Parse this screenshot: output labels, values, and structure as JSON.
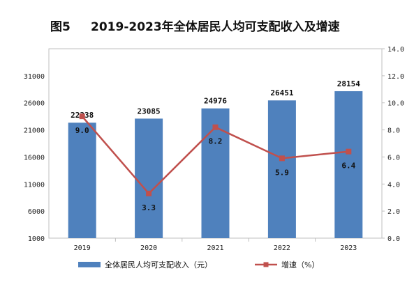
{
  "chart_data": {
    "type": "bar",
    "title_prefix": "图5",
    "title_main": "2019-2023年全体居民人均可支配收入及增速",
    "categories": [
      "2019",
      "2020",
      "2021",
      "2022",
      "2023"
    ],
    "series": [
      {
        "name": "全体居民人均可支配收入（元）",
        "type": "bar",
        "axis": "left",
        "values": [
          22338,
          23085,
          24976,
          26451,
          28154
        ],
        "value_labels": [
          "22338",
          "23085",
          "24976",
          "26451",
          "28154"
        ],
        "color": "#4F81BD"
      },
      {
        "name": "增速（%）",
        "type": "line",
        "axis": "right",
        "values": [
          9.0,
          3.3,
          8.2,
          5.9,
          6.4
        ],
        "value_labels": [
          "9.0",
          "3.3",
          "8.2",
          "5.9",
          "6.4"
        ],
        "color": "#C0504D"
      }
    ],
    "y_left": {
      "range": [
        1000,
        36000
      ],
      "ticks": [
        1000,
        6000,
        11000,
        16000,
        21000,
        26000,
        31000
      ],
      "tick_labels": [
        "1000",
        "6000",
        "11000",
        "16000",
        "21000",
        "26000",
        "31000"
      ]
    },
    "y_right": {
      "range": [
        0,
        14
      ],
      "ticks": [
        0,
        2,
        4,
        6,
        8,
        10,
        12,
        14
      ],
      "tick_labels": [
        "0.0",
        "2.0",
        "4.0",
        "6.0",
        "8.0",
        "10.0",
        "12.0",
        "14.0"
      ]
    },
    "grid": false,
    "legend_position": "bottom"
  }
}
